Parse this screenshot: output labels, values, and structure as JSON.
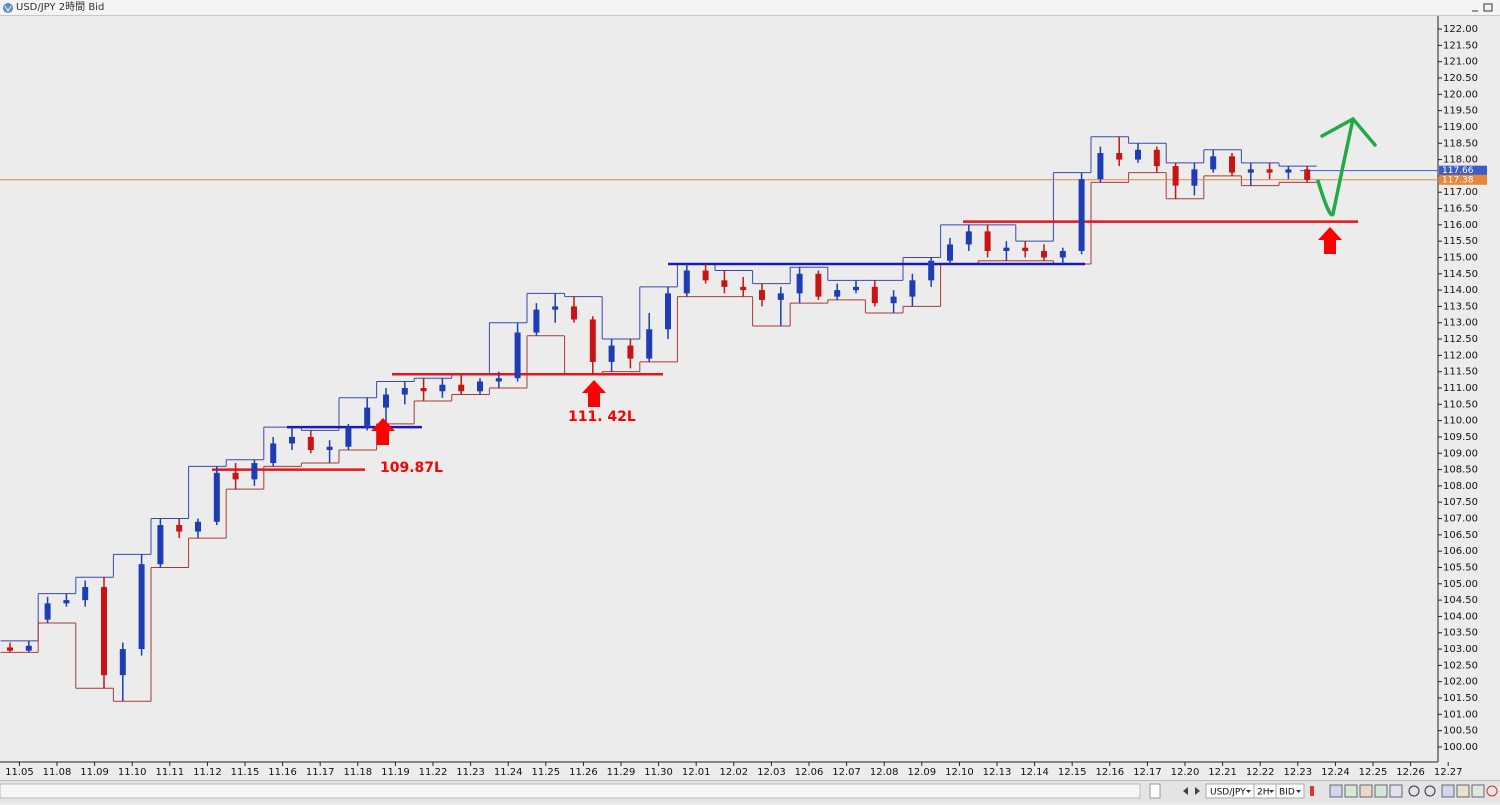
{
  "window": {
    "title": "USD/JPY 2時間 Bid"
  },
  "toolbar": {
    "symbol": "USD/JPY",
    "period": "2H",
    "price": "BID"
  },
  "chart_data": {
    "type": "candlestick",
    "categories": [
      "11.05",
      null,
      "11.08",
      null,
      "11.09",
      null,
      "11.10",
      null,
      "11.11",
      null,
      "11.12",
      null,
      "11.15",
      null,
      "11.16",
      null,
      "11.17",
      null,
      "11.18",
      null,
      "11.19",
      null,
      "11.22",
      null,
      "11.23",
      null,
      "11.24",
      null,
      "11.25",
      null,
      "11.26",
      null,
      "11.29",
      null,
      "11.30",
      null,
      "12.01",
      null,
      "12.02",
      null,
      "12.03",
      null,
      "12.06",
      null,
      "12.07",
      null,
      "12.08",
      null,
      "12.09",
      null,
      "12.10",
      null,
      "12.13",
      null,
      "12.14",
      null,
      "12.15",
      null,
      "12.16",
      null,
      "12.17",
      null,
      "12.20",
      null,
      "12.21",
      null,
      "12.22",
      null,
      "12.23",
      null,
      "12.24",
      null,
      "12.25",
      null,
      "12.26",
      null,
      "12.27",
      null
    ],
    "ohlc": [
      [
        103.05,
        103.2,
        102.9,
        102.95
      ],
      [
        102.95,
        103.25,
        102.9,
        103.1
      ],
      [
        103.9,
        104.6,
        103.8,
        104.4
      ],
      [
        104.4,
        104.7,
        104.3,
        104.5
      ],
      [
        104.5,
        105.1,
        104.3,
        104.9
      ],
      [
        104.9,
        105.2,
        101.8,
        102.2
      ],
      [
        102.2,
        103.2,
        101.4,
        103.0
      ],
      [
        103.0,
        105.9,
        102.8,
        105.6
      ],
      [
        105.6,
        107.0,
        105.5,
        106.8
      ],
      [
        106.8,
        107.0,
        106.4,
        106.6
      ],
      [
        106.6,
        107.0,
        106.4,
        106.9
      ],
      [
        106.9,
        108.6,
        106.8,
        108.4
      ],
      [
        108.4,
        108.7,
        107.9,
        108.2
      ],
      [
        108.2,
        108.8,
        108.0,
        108.7
      ],
      [
        108.7,
        109.5,
        108.6,
        109.3
      ],
      [
        109.3,
        109.8,
        109.1,
        109.5
      ],
      [
        109.5,
        109.7,
        109.0,
        109.1
      ],
      [
        109.1,
        109.4,
        108.7,
        109.2
      ],
      [
        109.2,
        109.9,
        109.1,
        109.8
      ],
      [
        109.8,
        110.7,
        109.7,
        110.4
      ],
      [
        110.4,
        111.0,
        109.9,
        110.8
      ],
      [
        110.8,
        111.2,
        110.5,
        111.0
      ],
      [
        111.0,
        111.3,
        110.6,
        110.9
      ],
      [
        110.9,
        111.3,
        110.7,
        111.1
      ],
      [
        111.1,
        111.4,
        110.8,
        110.9
      ],
      [
        110.9,
        111.3,
        110.8,
        111.2
      ],
      [
        111.2,
        111.5,
        111.0,
        111.3
      ],
      [
        111.3,
        113.0,
        111.2,
        112.7
      ],
      [
        112.7,
        113.6,
        112.6,
        113.4
      ],
      [
        113.4,
        113.9,
        113.0,
        113.5
      ],
      [
        113.5,
        113.8,
        113.0,
        113.1
      ],
      [
        113.1,
        113.2,
        111.4,
        111.8
      ],
      [
        111.8,
        112.5,
        111.5,
        112.3
      ],
      [
        112.3,
        112.5,
        111.6,
        111.9
      ],
      [
        111.9,
        113.3,
        111.8,
        112.8
      ],
      [
        112.8,
        114.1,
        112.5,
        113.9
      ],
      [
        113.9,
        114.8,
        113.8,
        114.6
      ],
      [
        114.6,
        114.8,
        114.2,
        114.3
      ],
      [
        114.3,
        114.6,
        113.9,
        114.1
      ],
      [
        114.1,
        114.4,
        113.8,
        114.0
      ],
      [
        114.0,
        114.2,
        113.5,
        113.7
      ],
      [
        113.7,
        114.1,
        112.9,
        113.9
      ],
      [
        113.9,
        114.7,
        113.6,
        114.5
      ],
      [
        114.5,
        114.6,
        113.7,
        113.8
      ],
      [
        113.8,
        114.2,
        113.7,
        114.0
      ],
      [
        114.0,
        114.3,
        113.9,
        114.1
      ],
      [
        114.1,
        114.3,
        113.5,
        113.6
      ],
      [
        113.6,
        114.0,
        113.3,
        113.8
      ],
      [
        113.8,
        114.5,
        113.5,
        114.3
      ],
      [
        114.3,
        115.0,
        114.1,
        114.9
      ],
      [
        114.9,
        115.6,
        114.8,
        115.4
      ],
      [
        115.4,
        116.0,
        115.2,
        115.8
      ],
      [
        115.8,
        116.0,
        115.0,
        115.2
      ],
      [
        115.2,
        115.5,
        114.9,
        115.3
      ],
      [
        115.3,
        115.5,
        115.0,
        115.2
      ],
      [
        115.2,
        115.4,
        114.9,
        115.0
      ],
      [
        115.0,
        115.3,
        114.8,
        115.2
      ],
      [
        115.2,
        117.6,
        115.1,
        117.4
      ],
      [
        117.4,
        118.4,
        117.3,
        118.2
      ],
      [
        118.2,
        118.7,
        117.8,
        118.0
      ],
      [
        118.0,
        118.5,
        117.9,
        118.3
      ],
      [
        118.3,
        118.4,
        117.6,
        117.8
      ],
      [
        117.8,
        117.9,
        116.8,
        117.2
      ],
      [
        117.2,
        117.9,
        116.9,
        117.7
      ],
      [
        117.7,
        118.3,
        117.6,
        118.1
      ],
      [
        118.1,
        118.2,
        117.5,
        117.6
      ],
      [
        117.6,
        117.9,
        117.2,
        117.7
      ],
      [
        117.7,
        117.9,
        117.4,
        117.6
      ],
      [
        117.6,
        117.8,
        117.4,
        117.7
      ],
      [
        117.7,
        117.8,
        117.3,
        117.38
      ],
      null,
      null,
      null,
      null,
      null,
      null,
      null,
      null
    ],
    "up_color": "#1e3cb4",
    "down_color": "#c81414",
    "box_high_color": "#3a48b0",
    "box_low_color": "#a83a3a",
    "ylim": [
      99.6,
      122.4
    ],
    "yticks": [
      {
        "value": 100,
        "label": "100.00"
      },
      {
        "value": 100.5,
        "label": "100.50"
      },
      {
        "value": 101,
        "label": "101.00"
      },
      {
        "value": 101.5,
        "label": "101.50"
      },
      {
        "value": 102,
        "label": "102.00"
      },
      {
        "value": 102.5,
        "label": "102.50"
      },
      {
        "value": 103,
        "label": "103.00"
      },
      {
        "value": 103.5,
        "label": "103.50"
      },
      {
        "value": 104,
        "label": "104.00"
      },
      {
        "value": 104.5,
        "label": "104.50"
      },
      {
        "value": 105,
        "label": "105.00"
      },
      {
        "value": 105.5,
        "label": "105.50"
      },
      {
        "value": 106,
        "label": "106.00"
      },
      {
        "value": 106.5,
        "label": "106.50"
      },
      {
        "value": 107,
        "label": "107.00"
      },
      {
        "value": 107.5,
        "label": "107.50"
      },
      {
        "value": 108,
        "label": "108.00"
      },
      {
        "value": 108.5,
        "label": "108.50"
      },
      {
        "value": 109,
        "label": "109.00"
      },
      {
        "value": 109.5,
        "label": "109.50"
      },
      {
        "value": 110,
        "label": "110.00"
      },
      {
        "value": 110.5,
        "label": "110.50"
      },
      {
        "value": 111,
        "label": "111.00"
      },
      {
        "value": 111.5,
        "label": "111.50"
      },
      {
        "value": 112,
        "label": "112.00"
      },
      {
        "value": 112.5,
        "label": "112.50"
      },
      {
        "value": 113,
        "label": "113.00"
      },
      {
        "value": 113.5,
        "label": "113.50"
      },
      {
        "value": 114,
        "label": "114.00"
      },
      {
        "value": 114.5,
        "label": "114.50"
      },
      {
        "value": 115,
        "label": "115.00"
      },
      {
        "value": 115.5,
        "label": "115.50"
      },
      {
        "value": 116,
        "label": "116.00"
      },
      {
        "value": 116.5,
        "label": "116.50"
      },
      {
        "value": 117,
        "label": "117.00"
      },
      {
        "value": 117.5,
        "label": "117.50"
      },
      {
        "value": 118,
        "label": "118.00"
      },
      {
        "value": 118.5,
        "label": "118.50"
      },
      {
        "value": 119,
        "label": "119.00"
      },
      {
        "value": 119.5,
        "label": "119.50"
      },
      {
        "value": 120,
        "label": "120.00"
      },
      {
        "value": 120.5,
        "label": "120.50"
      },
      {
        "value": 121,
        "label": "121.00"
      },
      {
        "value": 121.5,
        "label": "121.50"
      },
      {
        "value": 122,
        "label": "122.00"
      }
    ],
    "levels": [
      {
        "value": 108.5,
        "color": "#e8141b"
      },
      {
        "value": 109.8,
        "color": "#1a1ab4"
      },
      {
        "value": 111.42,
        "color": "#e8141b"
      },
      {
        "value": 114.8,
        "color": "#1a1ab4"
      },
      {
        "value": 116.1,
        "color": "#e8141b"
      }
    ],
    "ask_price": {
      "value": 117.66,
      "label": "117.66",
      "color": "#3c5ccc"
    },
    "current_price": {
      "value": 117.38,
      "label": "117.38",
      "color": "#e8873a"
    },
    "annotations": [
      "109.87L",
      "111. 42L"
    ]
  }
}
